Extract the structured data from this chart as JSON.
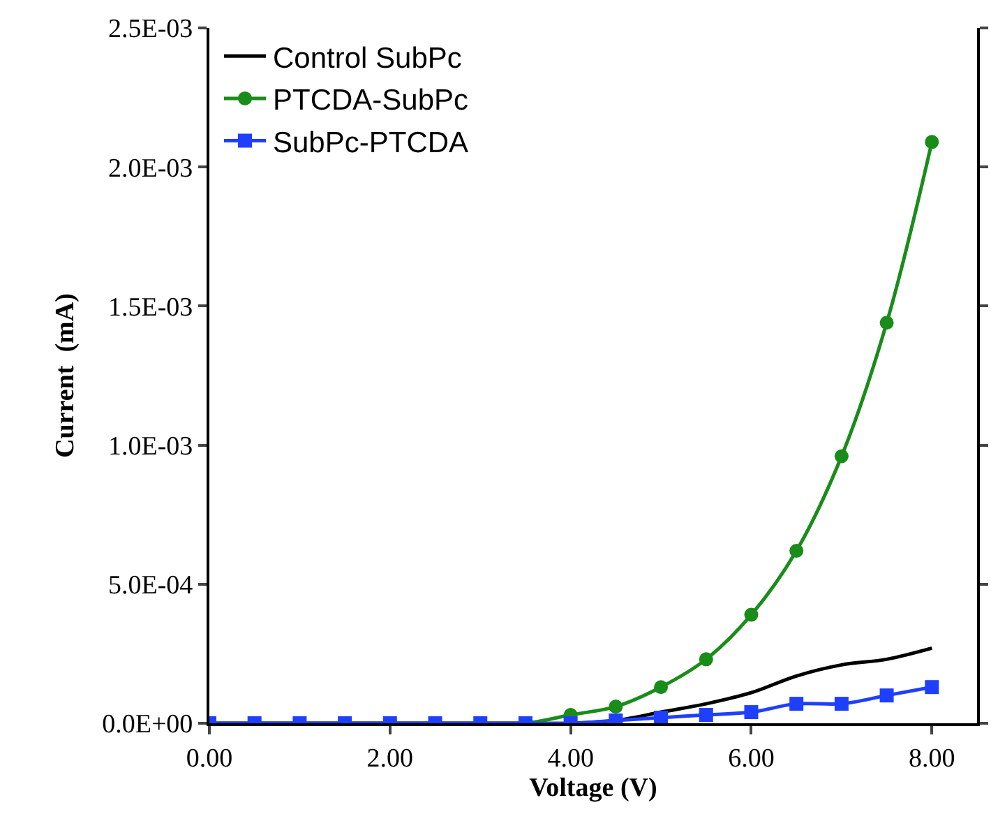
{
  "chart_data": {
    "type": "line",
    "xlabel": "Voltage (V)",
    "ylabel": "Current  (mA)",
    "x": [
      0,
      0.5,
      1,
      1.5,
      2,
      2.5,
      3,
      3.5,
      4,
      4.5,
      5,
      5.5,
      6,
      6.5,
      7,
      7.5,
      8
    ],
    "series": [
      {
        "name": "Control SubPc",
        "color": "#000000",
        "marker": "none",
        "values": [
          0,
          0,
          0,
          0,
          0,
          0,
          0,
          0,
          0,
          1e-05,
          4e-05,
          7e-05,
          0.00011,
          0.00017,
          0.00021,
          0.00023,
          0.00027
        ]
      },
      {
        "name": "PTCDA-SubPc",
        "color": "#1a8c1a",
        "marker": "circle",
        "values": [
          null,
          null,
          null,
          null,
          null,
          null,
          0,
          0,
          3e-05,
          6e-05,
          0.00013,
          0.00023,
          0.00039,
          0.00062,
          0.00096,
          0.00144,
          0.00209
        ]
      },
      {
        "name": "SubPc-PTCDA",
        "color": "#1f3fff",
        "marker": "square",
        "values": [
          0,
          0,
          0,
          0,
          0,
          0,
          0,
          0,
          0,
          1e-05,
          2e-05,
          3e-05,
          4e-05,
          7e-05,
          7e-05,
          0.0001,
          0.00013
        ]
      }
    ],
    "xlim": [
      0,
      8.5
    ],
    "xticks": [
      {
        "value": 0,
        "label": "0.00"
      },
      {
        "value": 2,
        "label": "2.00"
      },
      {
        "value": 4,
        "label": "4.00"
      },
      {
        "value": 6,
        "label": "6.00"
      },
      {
        "value": 8,
        "label": "8.00"
      }
    ],
    "ylim": [
      0,
      0.0025
    ],
    "yticks": [
      {
        "value": 0,
        "label": "0.0E+00"
      },
      {
        "value": 0.0005,
        "label": "5.0E-04"
      },
      {
        "value": 0.001,
        "label": "1.0E-03"
      },
      {
        "value": 0.0015,
        "label": "1.5E-03"
      },
      {
        "value": 0.002,
        "label": "2.0E-03"
      },
      {
        "value": 0.0025,
        "label": "2.5E-03"
      }
    ],
    "legend": "top left"
  }
}
